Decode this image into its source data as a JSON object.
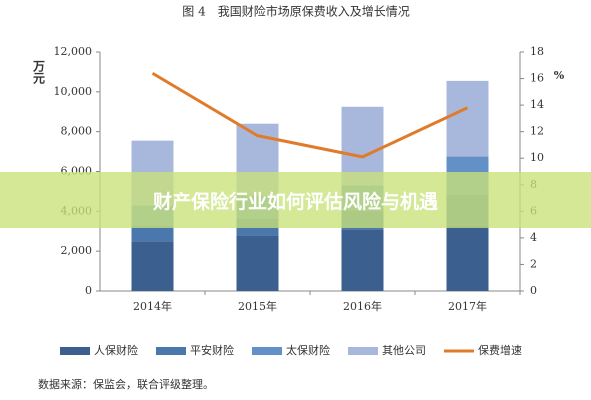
{
  "chart_data": {
    "type": "stacked-bar-line",
    "title": "图 4　我国财险市场原保费收入及增长情况",
    "y_label": "万元",
    "y2_label": "%",
    "categories": [
      "2014年",
      "2015年",
      "2016年",
      "2017年"
    ],
    "series": [
      {
        "name": "人保财险",
        "color": "#3b5f8e",
        "values": [
          2500,
          2800,
          3100,
          3300
        ]
      },
      {
        "name": "平安财险",
        "color": "#4a78ad",
        "values": [
          800,
          850,
          950,
          1550
        ]
      },
      {
        "name": "太保财险",
        "color": "#6490c8",
        "values": [
          1000,
          1150,
          1250,
          1900
        ]
      },
      {
        "name": "其他公司",
        "color": "#a8b8dc",
        "values": [
          3250,
          3600,
          3950,
          3800
        ]
      },
      {
        "name": "保费增速",
        "color": "#e07b2a",
        "axis": "y2",
        "type": "line",
        "values": [
          16.4,
          11.7,
          10.1,
          13.8
        ]
      }
    ],
    "ylim": [
      0,
      12000
    ],
    "yticks": [
      0,
      {
        "value": 2000,
        "label": "2,000"
      },
      {
        "value": 4000,
        "label": "4,000"
      },
      {
        "value": 6000,
        "label": "6,000"
      },
      {
        "value": 8000,
        "label": "8,000"
      },
      {
        "value": 10000,
        "label": "10,000"
      },
      {
        "value": 12000,
        "label": "12,000"
      }
    ],
    "y2lim": [
      0,
      18
    ],
    "y2ticks": [
      0,
      2,
      4,
      6,
      8,
      10,
      12,
      14,
      16,
      18
    ],
    "grid": false,
    "legend": "bottom",
    "source": "数据来源：保监会，联合评级整理。"
  },
  "banner": "财产保险行业如何评估风险与机遇"
}
